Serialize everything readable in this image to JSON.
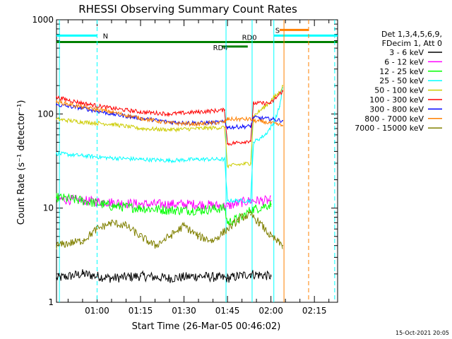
{
  "chart_data": {
    "type": "line",
    "title": "RHESSI Observing Summary Count Rates",
    "xlabel": "Start Time (26-Mar-05 00:46:02)",
    "ylabel": "Count Rate (s⁻¹ detector⁻¹)",
    "yscale": "log",
    "ylim": [
      1,
      1000
    ],
    "xlim_minutes": [
      46,
      143
    ],
    "x_ticks": [
      {
        "m": 60,
        "label": "01:00"
      },
      {
        "m": 75,
        "label": "01:15"
      },
      {
        "m": 90,
        "label": "01:30"
      },
      {
        "m": 105,
        "label": "01:45"
      },
      {
        "m": 120,
        "label": "02:00"
      },
      {
        "m": 135,
        "label": "02:15"
      }
    ],
    "y_ticks": [
      {
        "v": 1,
        "label": "1"
      },
      {
        "v": 10,
        "label": "10"
      },
      {
        "v": 100,
        "label": "100"
      },
      {
        "v": 1000,
        "label": "1000"
      }
    ],
    "legend_header": [
      "Det 1,3,4,5,6,9,",
      "FDecim 1, Att 0"
    ],
    "legend_position": "right",
    "series": [
      {
        "name": "3 - 6 keV",
        "color": "#000000",
        "points": [
          [
            46,
            1.8
          ],
          [
            55,
            2.0
          ],
          [
            65,
            1.8
          ],
          [
            75,
            1.9
          ],
          [
            85,
            1.8
          ],
          [
            95,
            1.9
          ],
          [
            105,
            1.8
          ],
          [
            113,
            2.0
          ],
          [
            120,
            1.9
          ]
        ]
      },
      {
        "name": "6 - 12 keV",
        "color": "#ff00ff",
        "points": [
          [
            46,
            12.5
          ],
          [
            55,
            12
          ],
          [
            65,
            11.5
          ],
          [
            75,
            11
          ],
          [
            85,
            11
          ],
          [
            95,
            11
          ],
          [
            104,
            10.5
          ],
          [
            105,
            10.5
          ],
          [
            110,
            11.5
          ],
          [
            113,
            12
          ],
          [
            120,
            12
          ]
        ]
      },
      {
        "name": "12 - 25 keV",
        "color": "#00ff00",
        "points": [
          [
            46,
            13
          ],
          [
            55,
            12
          ],
          [
            65,
            10.5
          ],
          [
            75,
            10
          ],
          [
            85,
            9.5
          ],
          [
            95,
            9.5
          ],
          [
            104,
            10
          ],
          [
            105,
            7
          ],
          [
            110,
            8
          ],
          [
            113,
            9.5
          ],
          [
            120,
            11
          ]
        ]
      },
      {
        "name": "25 - 50 keV",
        "color": "#00ffff",
        "points": [
          [
            46,
            38
          ],
          [
            55,
            36
          ],
          [
            65,
            34
          ],
          [
            75,
            33
          ],
          [
            85,
            32
          ],
          [
            95,
            33
          ],
          [
            104,
            33
          ],
          [
            105,
            12
          ],
          [
            113,
            12
          ],
          [
            114,
            50
          ],
          [
            118,
            60
          ],
          [
            121,
            80
          ],
          [
            123,
            120
          ],
          [
            124,
            190
          ]
        ]
      },
      {
        "name": "50 - 100 keV",
        "color": "#cccc00",
        "points": [
          [
            46,
            88
          ],
          [
            55,
            82
          ],
          [
            65,
            78
          ],
          [
            75,
            70
          ],
          [
            85,
            68
          ],
          [
            95,
            70
          ],
          [
            104,
            72
          ],
          [
            105,
            28
          ],
          [
            113,
            30
          ],
          [
            114,
            95
          ],
          [
            118,
            120
          ],
          [
            121,
            150
          ],
          [
            123,
            170
          ],
          [
            124,
            200
          ]
        ]
      },
      {
        "name": "100 - 300 keV",
        "color": "#ff0000",
        "points": [
          [
            46,
            150
          ],
          [
            55,
            130
          ],
          [
            65,
            115
          ],
          [
            75,
            105
          ],
          [
            85,
            100
          ],
          [
            95,
            105
          ],
          [
            104,
            110
          ],
          [
            105,
            48
          ],
          [
            113,
            52
          ],
          [
            114,
            130
          ],
          [
            120,
            130
          ],
          [
            124,
            175
          ]
        ]
      },
      {
        "name": "300 - 800 keV",
        "color": "#0000ff",
        "points": [
          [
            46,
            125
          ],
          [
            55,
            115
          ],
          [
            65,
            100
          ],
          [
            75,
            90
          ],
          [
            85,
            82
          ],
          [
            95,
            80
          ],
          [
            104,
            82
          ],
          [
            105,
            72
          ],
          [
            113,
            74
          ],
          [
            114,
            92
          ],
          [
            120,
            88
          ],
          [
            124,
            85
          ]
        ]
      },
      {
        "name": "800 - 7000 keV",
        "color": "#ff8000",
        "points": [
          [
            46,
            135
          ],
          [
            55,
            118
          ],
          [
            65,
            105
          ],
          [
            75,
            90
          ],
          [
            85,
            80
          ],
          [
            95,
            78
          ],
          [
            104,
            82
          ],
          [
            105,
            88
          ],
          [
            113,
            88
          ],
          [
            114,
            85
          ],
          [
            120,
            80
          ],
          [
            124,
            75
          ]
        ]
      },
      {
        "name": "7000 - 15000 keV",
        "color": "#808000",
        "points": [
          [
            46,
            4
          ],
          [
            55,
            4.5
          ],
          [
            60,
            6
          ],
          [
            65,
            7
          ],
          [
            70,
            6.5
          ],
          [
            75,
            5
          ],
          [
            80,
            4
          ],
          [
            85,
            5
          ],
          [
            90,
            6.5
          ],
          [
            95,
            5
          ],
          [
            100,
            4.5
          ],
          [
            105,
            6
          ],
          [
            110,
            8
          ],
          [
            113,
            8.5
          ],
          [
            116,
            7
          ],
          [
            120,
            5
          ],
          [
            124,
            4
          ]
        ]
      }
    ],
    "annotations": [
      {
        "label": "N",
        "color": "#00ffff"
      },
      {
        "label": "S",
        "color": "#ff8000"
      },
      {
        "label": "RD0",
        "color": "#008000"
      },
      {
        "label": "RD4",
        "color": "#008000"
      }
    ]
  },
  "footer_date": "15-Oct-2021 20:05"
}
